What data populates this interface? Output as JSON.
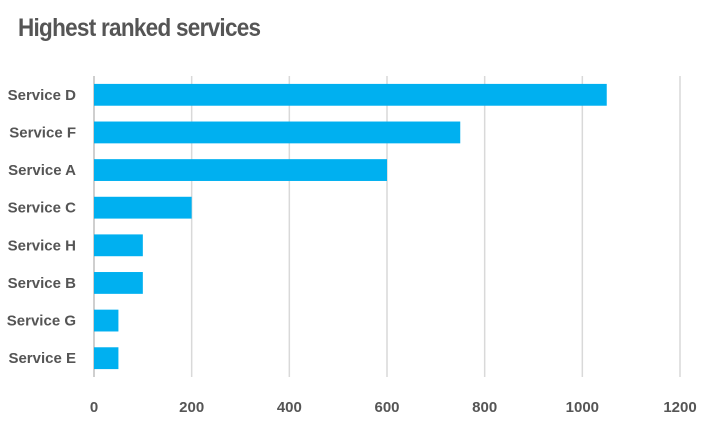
{
  "chart_data": {
    "type": "bar",
    "orientation": "horizontal",
    "title": "Highest ranked services",
    "categories": [
      "Service D",
      "Service F",
      "Service A",
      "Service C",
      "Service H",
      "Service B",
      "Service G",
      "Service E"
    ],
    "values": [
      1050,
      750,
      600,
      200,
      100,
      100,
      50,
      50
    ],
    "xlim": [
      0,
      1200
    ],
    "xticks": [
      0,
      200,
      400,
      600,
      800,
      1000,
      1200
    ],
    "xlabel": "",
    "ylabel": "",
    "grid": "vertical",
    "legend": "none",
    "bar_color": "#00b0f0"
  }
}
